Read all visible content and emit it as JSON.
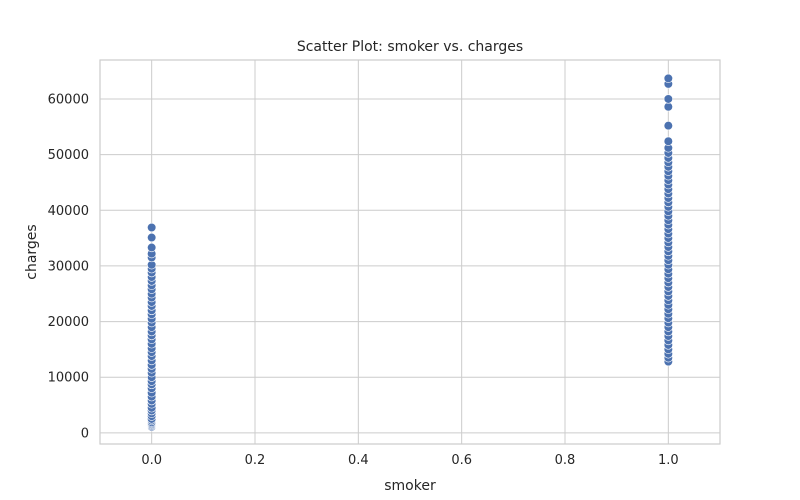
{
  "chart_data": {
    "type": "scatter",
    "title": "Scatter Plot: smoker vs. charges",
    "xlabel": "smoker",
    "ylabel": "charges",
    "xlim": [
      -0.1,
      1.1
    ],
    "ylim": [
      -2000,
      67000
    ],
    "xticks": [
      0.0,
      0.2,
      0.4,
      0.6,
      0.8,
      1.0
    ],
    "xtick_labels": [
      "0.0",
      "0.2",
      "0.4",
      "0.6",
      "0.8",
      "1.0"
    ],
    "yticks": [
      0,
      10000,
      20000,
      30000,
      40000,
      50000,
      60000
    ],
    "ytick_labels": [
      "0",
      "10000",
      "20000",
      "30000",
      "40000",
      "50000",
      "60000"
    ],
    "grid": true,
    "marker_color": "#4c72b0",
    "series": [
      {
        "x": 0.0,
        "y": [
          1100,
          1300,
          1500,
          1700,
          1900,
          2200,
          2500,
          3000,
          3500,
          4000,
          4500,
          5200,
          5800,
          6500,
          7200,
          8000,
          8700,
          9300,
          10000,
          10800,
          11500,
          12200,
          13000,
          13800,
          14500,
          15200,
          16000,
          16800,
          17500,
          18200,
          19000,
          19800,
          20500,
          21300,
          22000,
          22800,
          23500,
          24300,
          25000,
          25800,
          26500,
          27300,
          28000,
          28800,
          29500,
          30200,
          31500,
          32200,
          33300,
          35100,
          36900
        ]
      },
      {
        "x": 1.0,
        "y": [
          12800,
          13500,
          14200,
          15000,
          15800,
          16600,
          17400,
          18200,
          19000,
          19800,
          20600,
          21400,
          22200,
          23000,
          23800,
          24600,
          25400,
          26200,
          27000,
          27800,
          28600,
          29400,
          30200,
          31000,
          31800,
          32600,
          33400,
          34200,
          35000,
          35800,
          36600,
          37400,
          38200,
          39000,
          39800,
          40600,
          41400,
          42200,
          43000,
          43800,
          44600,
          45400,
          46200,
          47000,
          47800,
          48600,
          49400,
          50300,
          51200,
          52400,
          55200,
          58600,
          60000,
          62700,
          63700
        ]
      }
    ]
  }
}
